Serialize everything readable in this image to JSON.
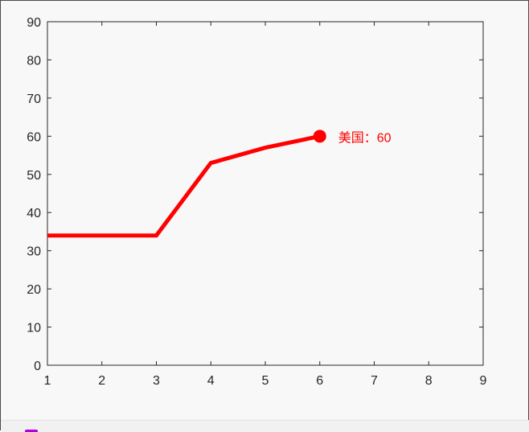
{
  "chart_data": {
    "type": "line",
    "title": "",
    "xlabel": "",
    "ylabel": "",
    "xlim": [
      1,
      9
    ],
    "ylim": [
      0,
      90
    ],
    "x_ticks": [
      1,
      2,
      3,
      4,
      5,
      6,
      7,
      8,
      9
    ],
    "y_ticks": [
      0,
      10,
      20,
      30,
      40,
      50,
      60,
      70,
      80,
      90
    ],
    "grid": false,
    "legend": "none",
    "series": [
      {
        "color": "#ff0000",
        "x": [
          1,
          2,
          3,
          4,
          5,
          6
        ],
        "y": [
          34,
          34,
          34,
          53,
          57,
          60
        ]
      }
    ],
    "annotation": {
      "text": "美国：60",
      "x": 6,
      "y": 60,
      "color": "#ff0000"
    }
  },
  "colors": {
    "axes_background": "#f8f8f8",
    "axis_line": "#262626",
    "series_line": "#ff0000"
  }
}
